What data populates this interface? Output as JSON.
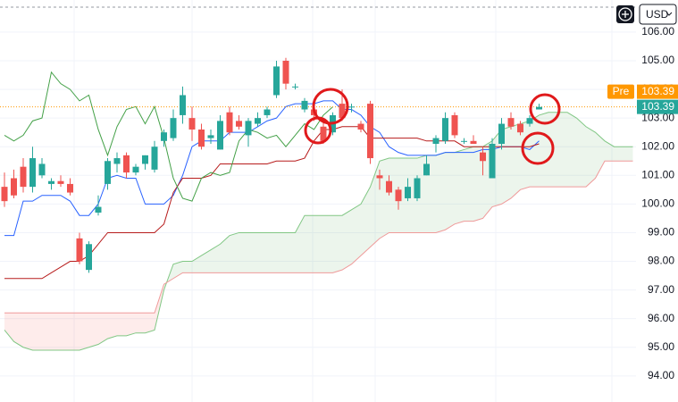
{
  "chart_data": {
    "type": "candlestick",
    "ylim": [
      93.09,
      107.12
    ],
    "yticks": [
      {
        "value": 94,
        "label": "94.00"
      },
      {
        "value": 95,
        "label": "95.00"
      },
      {
        "value": 96,
        "label": "96.00"
      },
      {
        "value": 97,
        "label": "97.00"
      },
      {
        "value": 98,
        "label": "98.00"
      },
      {
        "value": 99,
        "label": "99.00"
      },
      {
        "value": 100,
        "label": "100.00"
      },
      {
        "value": 101,
        "label": "101.00"
      },
      {
        "value": 102,
        "label": "102.00"
      },
      {
        "value": 103,
        "label": "103.00"
      },
      {
        "value": 104,
        "label": "104.00"
      },
      {
        "value": 105,
        "label": "105.00"
      },
      {
        "value": 106,
        "label": "106.00"
      }
    ],
    "grid": true,
    "currency": "USD",
    "last_price": {
      "value": 103.39,
      "label": "103.39",
      "color": "#26a69a"
    },
    "pre_market": {
      "label": "Pre",
      "price": "103.39",
      "color": "#ff9800"
    },
    "candles": {
      "up_color": "#26a69a",
      "down_color": "#ef5350",
      "open": [
        100.6,
        100.9,
        101.3,
        100.6,
        101.0,
        100.7,
        100.8,
        100.7,
        98.8,
        97.7,
        99.7,
        100.7,
        101.4,
        101.7,
        101.1,
        101.4,
        101.2,
        102.2,
        102.3,
        103.1,
        103.0,
        102.6,
        102.3,
        101.9,
        103.2,
        102.9,
        102.4,
        102.8,
        103.1,
        103.8,
        105.0,
        104.1,
        103.3,
        103.3,
        102.7,
        102.5,
        103.5,
        103.4,
        102.8,
        103.5,
        101.0,
        100.8,
        100.5,
        100.2,
        100.2,
        101.0,
        102.1,
        102.2,
        103.1,
        102.2,
        102.2,
        101.8,
        100.9,
        102.1,
        103.0,
        102.8,
        102.8,
        103.3
      ],
      "high": [
        101.1,
        101.2,
        101.6,
        102.0,
        101.6,
        100.9,
        101.0,
        100.9,
        99.0,
        98.7,
        100.3,
        101.6,
        101.8,
        101.8,
        101.4,
        101.7,
        102.2,
        102.6,
        103.3,
        104.1,
        103.4,
        102.8,
        102.6,
        103.1,
        103.4,
        103.1,
        103.0,
        103.2,
        103.4,
        105.0,
        105.1,
        104.2,
        103.7,
        103.5,
        102.9,
        103.2,
        104.0,
        103.5,
        102.9,
        103.6,
        101.2,
        101.0,
        100.6,
        100.9,
        101.0,
        101.7,
        102.4,
        103.2,
        103.2,
        102.3,
        102.4,
        102.0,
        102.3,
        103.0,
        103.2,
        102.9,
        103.1,
        103.5
      ],
      "low": [
        99.9,
        100.2,
        100.4,
        100.4,
        100.9,
        100.5,
        100.6,
        100.3,
        97.9,
        97.6,
        99.6,
        100.5,
        101.1,
        100.9,
        101.0,
        101.2,
        101.1,
        102.0,
        102.2,
        102.8,
        102.2,
        101.9,
        102.1,
        101.9,
        102.4,
        102.6,
        102.0,
        102.7,
        103.0,
        103.7,
        104.0,
        104.0,
        103.2,
        102.9,
        102.1,
        102.4,
        102.9,
        103.2,
        102.5,
        101.4,
        100.5,
        100.3,
        99.8,
        100.1,
        100.1,
        101.0,
        101.8,
        102.1,
        102.3,
        102.1,
        102.1,
        101.0,
        100.9,
        101.9,
        102.6,
        102.4,
        102.7,
        103.3
      ],
      "close": [
        100.1,
        100.3,
        100.6,
        101.6,
        101.4,
        100.8,
        100.7,
        100.4,
        98.0,
        98.6,
        99.9,
        101.5,
        101.6,
        101.1,
        101.3,
        101.7,
        102.0,
        102.5,
        103.0,
        103.8,
        102.6,
        102.0,
        102.4,
        102.9,
        102.5,
        102.7,
        102.9,
        103.0,
        103.3,
        104.8,
        104.2,
        104.1,
        103.6,
        103.1,
        102.2,
        103.1,
        103.0,
        103.4,
        102.6,
        101.6,
        100.9,
        100.4,
        100.1,
        100.6,
        100.9,
        101.4,
        102.3,
        103.0,
        102.4,
        102.2,
        102.1,
        101.5,
        102.1,
        102.8,
        102.7,
        102.5,
        103.0,
        103.39
      ]
    },
    "lines": [
      {
        "color": "#2962ff",
        "values": [
          98.9,
          98.9,
          100.1,
          100.1,
          100.3,
          100.3,
          100.3,
          100.1,
          99.6,
          99.6,
          100.0,
          100.9,
          101.0,
          100.9,
          100.9,
          100.0,
          100.0,
          100.0,
          100.3,
          101.0,
          102.0,
          102.2,
          102.2,
          102.2,
          102.5,
          102.5,
          102.5,
          102.7,
          102.9,
          103.0,
          103.4,
          103.5,
          103.5,
          103.5,
          103.6,
          103.6,
          103.3,
          103.3,
          103.1,
          102.7,
          102.5,
          102.0,
          101.8,
          101.7,
          101.7,
          101.7,
          101.7,
          101.8,
          101.8,
          101.8,
          101.8,
          101.9,
          101.9,
          102.0,
          102.0,
          102.0,
          101.9,
          102.2
        ]
      },
      {
        "color": "#b71c1c",
        "values": [
          97.4,
          97.4,
          97.4,
          97.4,
          97.4,
          97.6,
          97.8,
          98.0,
          98.0,
          98.2,
          98.6,
          99.0,
          99.0,
          99.0,
          99.0,
          99.0,
          99.0,
          99.3,
          100.4,
          100.9,
          100.9,
          100.9,
          101.0,
          101.4,
          101.4,
          101.4,
          101.4,
          101.4,
          101.4,
          101.5,
          101.5,
          101.5,
          101.6,
          102.2,
          102.6,
          102.6,
          102.7,
          102.7,
          102.7,
          102.3,
          102.3,
          102.3,
          102.3,
          102.3,
          102.3,
          102.2,
          102.2,
          102.2,
          102.2,
          102.0,
          102.0,
          102.0,
          102.0,
          102.0,
          102.0,
          102.0,
          102.0,
          102.1
        ]
      },
      {
        "color": "#43a047",
        "values": [
          102.4,
          102.2,
          102.4,
          102.9,
          103.0,
          104.6,
          104.2,
          104.0,
          103.6,
          103.8,
          102.6,
          101.7,
          102.7,
          103.3,
          103.4,
          102.8,
          103.4,
          102.3,
          100.9,
          100.2,
          100.1,
          100.9,
          101.1,
          101.0,
          101.1,
          102.2,
          102.6,
          102.5,
          102.3,
          102.4,
          102.0,
          102.4,
          102.8,
          102.6,
          103.1,
          103.39
        ]
      }
    ],
    "cloud": {
      "a_color": "#81c784",
      "b_color": "#ef9a9a",
      "up_fill": "rgba(67,160,71,0.10)",
      "down_fill": "rgba(244,67,54,0.10)",
      "span_a": [
        95.6,
        95.2,
        95.0,
        94.9,
        94.9,
        94.9,
        94.9,
        94.9,
        94.9,
        95.0,
        95.1,
        95.3,
        95.4,
        95.4,
        95.5,
        95.5,
        95.6,
        97.0,
        97.9,
        98.0,
        98.0,
        98.2,
        98.4,
        98.6,
        98.9,
        99.0,
        99.0,
        99.0,
        99.0,
        99.0,
        99.0,
        99.0,
        99.6,
        99.6,
        99.6,
        99.6,
        99.6,
        99.8,
        100.0,
        100.6,
        101.5,
        101.6,
        101.6,
        101.6,
        101.6,
        101.7,
        101.7,
        101.8,
        101.8,
        101.9,
        102.0,
        102.0,
        102.2,
        102.6,
        102.7,
        102.8,
        102.9,
        103.1,
        103.2,
        103.2,
        103.2,
        103.0,
        102.7,
        102.5,
        102.2,
        102.0,
        102.0,
        102.0
      ],
      "span_b": [
        96.2,
        96.2,
        96.2,
        96.2,
        96.2,
        96.2,
        96.2,
        96.2,
        96.2,
        96.2,
        96.2,
        96.2,
        96.2,
        96.2,
        96.2,
        96.2,
        96.2,
        97.2,
        97.4,
        97.6,
        97.6,
        97.6,
        97.6,
        97.6,
        97.6,
        97.6,
        97.6,
        97.6,
        97.6,
        97.6,
        97.6,
        97.6,
        97.6,
        97.6,
        97.6,
        97.6,
        97.7,
        97.9,
        98.2,
        98.5,
        98.8,
        99.0,
        99.0,
        99.0,
        99.0,
        99.0,
        99.0,
        99.1,
        99.3,
        99.4,
        99.4,
        99.5,
        99.9,
        100.0,
        100.2,
        100.5,
        100.6,
        100.6,
        100.6,
        100.6,
        100.6,
        100.6,
        100.6,
        100.9,
        101.5,
        101.5,
        101.5,
        101.5
      ]
    }
  }
}
